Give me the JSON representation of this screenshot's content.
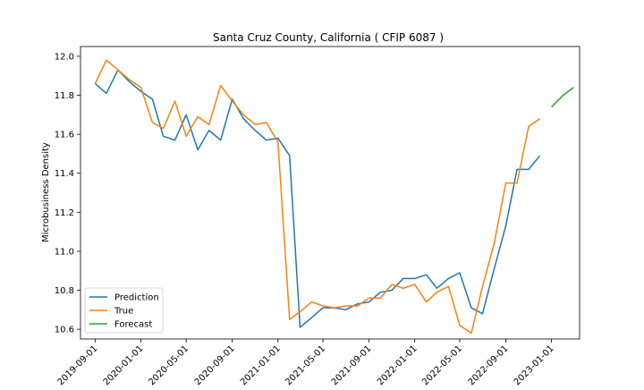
{
  "chart_data": {
    "type": "line",
    "title": "Santa Cruz County, California ( CFIP 6087 )",
    "xlabel": "",
    "ylabel": "Microbusiness Density",
    "xlim": [
      "2019-07-24",
      "2023-03-17"
    ],
    "ylim": [
      10.55,
      12.05
    ],
    "x_ticks": [
      "2019-09-01",
      "2020-01-01",
      "2020-05-01",
      "2020-09-01",
      "2021-01-01",
      "2021-05-01",
      "2021-09-01",
      "2022-01-01",
      "2022-05-01",
      "2022-09-01",
      "2023-01-01"
    ],
    "y_ticks": [
      "10.6",
      "10.8",
      "11.0",
      "11.2",
      "11.4",
      "11.6",
      "11.8",
      "12.0"
    ],
    "legend_position": "lower-left",
    "series": [
      {
        "name": "Prediction",
        "color": "#1f77b4",
        "x": [
          "2019-09-01",
          "2019-10-01",
          "2019-11-01",
          "2019-12-01",
          "2020-01-01",
          "2020-02-01",
          "2020-03-01",
          "2020-04-01",
          "2020-05-01",
          "2020-06-01",
          "2020-07-01",
          "2020-08-01",
          "2020-09-01",
          "2020-10-01",
          "2020-11-01",
          "2020-12-01",
          "2021-01-01",
          "2021-02-01",
          "2021-03-01",
          "2021-04-01",
          "2021-05-01",
          "2021-06-01",
          "2021-07-01",
          "2021-08-01",
          "2021-09-01",
          "2021-10-01",
          "2021-11-01",
          "2021-12-01",
          "2022-01-01",
          "2022-02-01",
          "2022-03-01",
          "2022-04-01",
          "2022-05-01",
          "2022-06-01",
          "2022-07-01",
          "2022-08-01",
          "2022-09-01",
          "2022-10-01",
          "2022-11-01",
          "2022-12-01"
        ],
        "values": [
          11.86,
          11.81,
          11.93,
          11.87,
          11.82,
          11.78,
          11.59,
          11.57,
          11.7,
          11.52,
          11.62,
          11.57,
          11.78,
          11.68,
          11.62,
          11.57,
          11.58,
          11.49,
          10.61,
          10.66,
          10.71,
          10.71,
          10.7,
          10.73,
          10.74,
          10.79,
          10.8,
          10.86,
          10.86,
          10.88,
          10.81,
          10.86,
          10.89,
          10.71,
          10.68,
          10.91,
          11.13,
          11.42,
          11.42,
          11.49
        ]
      },
      {
        "name": "True",
        "color": "#ff7f0e",
        "x": [
          "2019-09-01",
          "2019-10-01",
          "2019-11-01",
          "2019-12-01",
          "2020-01-01",
          "2020-02-01",
          "2020-03-01",
          "2020-04-01",
          "2020-05-01",
          "2020-06-01",
          "2020-07-01",
          "2020-08-01",
          "2020-09-01",
          "2020-10-01",
          "2020-11-01",
          "2020-12-01",
          "2021-01-01",
          "2021-02-01",
          "2021-03-01",
          "2021-04-01",
          "2021-05-01",
          "2021-06-01",
          "2021-07-01",
          "2021-08-01",
          "2021-09-01",
          "2021-10-01",
          "2021-11-01",
          "2021-12-01",
          "2022-01-01",
          "2022-02-01",
          "2022-03-01",
          "2022-04-01",
          "2022-05-01",
          "2022-06-01",
          "2022-07-01",
          "2022-08-01",
          "2022-09-01",
          "2022-10-01",
          "2022-11-01",
          "2022-12-01"
        ],
        "values": [
          11.86,
          11.98,
          11.93,
          11.88,
          11.84,
          11.66,
          11.63,
          11.77,
          11.59,
          11.69,
          11.65,
          11.85,
          11.77,
          11.7,
          11.65,
          11.66,
          11.56,
          10.65,
          10.69,
          10.74,
          10.72,
          10.71,
          10.72,
          10.72,
          10.76,
          10.76,
          10.83,
          10.81,
          10.83,
          10.74,
          10.79,
          10.82,
          10.62,
          10.58,
          10.82,
          11.04,
          11.35,
          11.35,
          11.64,
          11.68
        ]
      },
      {
        "name": "Forecast",
        "color": "#2ca02c",
        "x": [
          "2023-01-01",
          "2023-02-01",
          "2023-03-01"
        ],
        "values": [
          11.74,
          11.8,
          11.84
        ]
      }
    ]
  }
}
